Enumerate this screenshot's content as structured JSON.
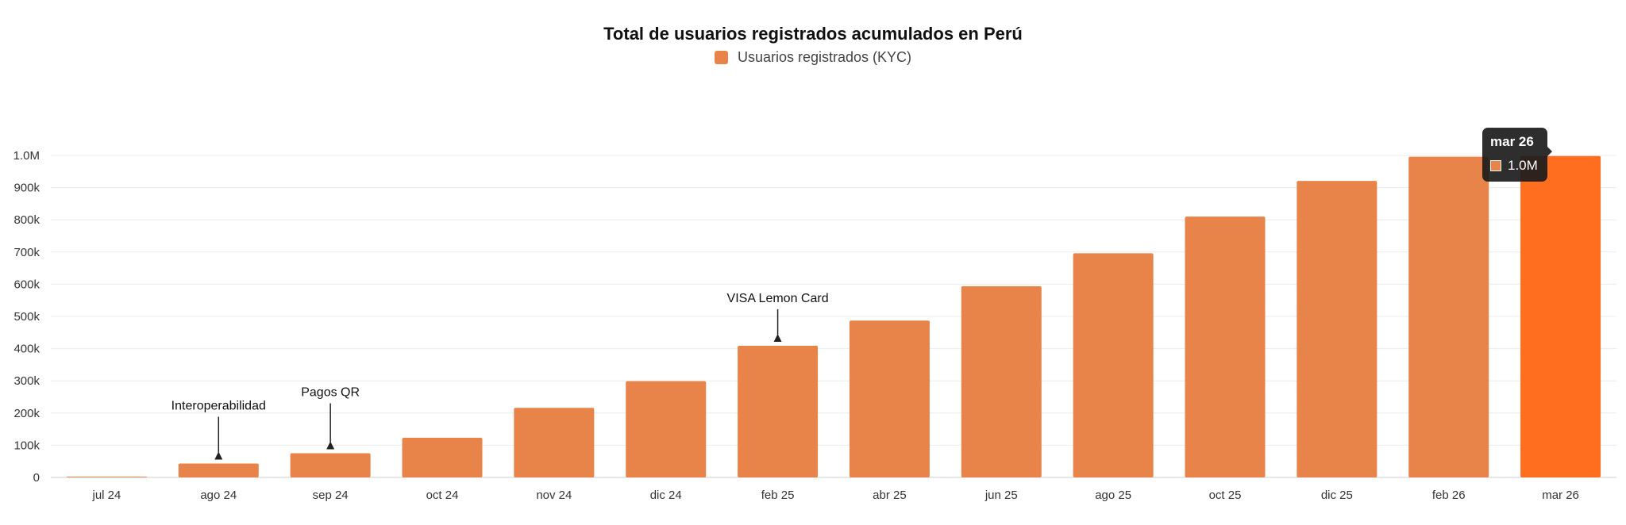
{
  "chart_data": {
    "type": "bar",
    "title": "Total de usuarios registrados acumulados en Perú",
    "legend": [
      {
        "label": "Usuarios registrados (KYC)",
        "color": "#e8834a"
      }
    ],
    "categories": [
      "jul 24",
      "ago 24",
      "sep 24",
      "oct 24",
      "nov 24",
      "dic 24",
      "feb 25",
      "abr 25",
      "jun 25",
      "ago 25",
      "oct 25",
      "dic 25",
      "feb 26",
      "mar 26"
    ],
    "values": [
      2000,
      43000,
      75000,
      123000,
      216000,
      299000,
      409000,
      487000,
      594000,
      696000,
      810000,
      921000,
      996000,
      998000
    ],
    "ylim": [
      0,
      1000000
    ],
    "yticks": [
      {
        "value": 0,
        "label": "0"
      },
      {
        "value": 100000,
        "label": "100k"
      },
      {
        "value": 200000,
        "label": "200k"
      },
      {
        "value": 300000,
        "label": "300k"
      },
      {
        "value": 400000,
        "label": "400k"
      },
      {
        "value": 500000,
        "label": "500k"
      },
      {
        "value": 600000,
        "label": "600k"
      },
      {
        "value": 700000,
        "label": "700k"
      },
      {
        "value": 800000,
        "label": "800k"
      },
      {
        "value": 900000,
        "label": "900k"
      },
      {
        "value": 1000000,
        "label": "1.0M"
      }
    ],
    "xlabel": "",
    "ylabel": "",
    "grid": true,
    "legend_position": "top-center",
    "annotations": [
      {
        "category": "ago 24",
        "text": "Interoperabilidad"
      },
      {
        "category": "sep 24",
        "text": "Pagos QR"
      },
      {
        "category": "feb 25",
        "text": "VISA Lemon Card"
      }
    ],
    "bar_color": "#e8834a",
    "highlight_color": "#ff6d1f",
    "highlighted_category": "mar 26"
  },
  "tooltip": {
    "title": "mar 26",
    "value": "1.0M"
  }
}
